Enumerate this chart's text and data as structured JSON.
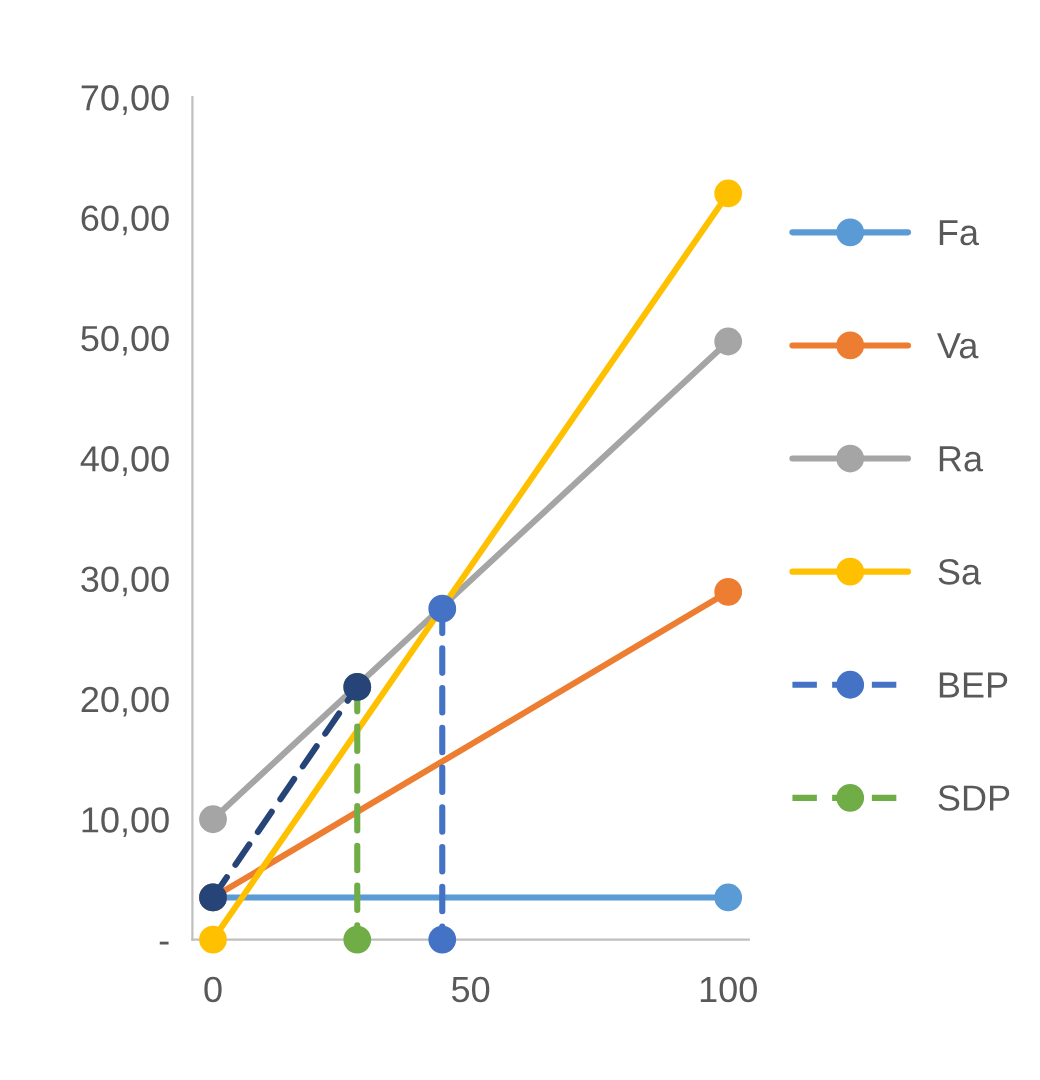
{
  "chart_data": {
    "type": "line",
    "series": [
      {
        "name": "Fa",
        "color": "#5b9bd5",
        "x": [
          0,
          100
        ],
        "values": [
          3.5,
          3.5
        ]
      },
      {
        "name": "Va",
        "color": "#ed7d31",
        "x": [
          0,
          100
        ],
        "values": [
          3.5,
          28.9
        ]
      },
      {
        "name": "Ra",
        "color": "#a5a5a5",
        "x": [
          0,
          100
        ],
        "values": [
          10,
          49.7
        ]
      },
      {
        "name": "Sa",
        "color": "#ffc000",
        "x": [
          0,
          100
        ],
        "values": [
          0,
          62
        ]
      },
      {
        "name": "BEP",
        "color": "#4472c4",
        "x": [
          44.5,
          44.5
        ],
        "values": [
          27.5,
          0
        ],
        "line_style": "dashed"
      },
      {
        "name": "SDP",
        "color": "#70ad47",
        "x": [
          28,
          28
        ],
        "values": [
          21,
          0
        ],
        "line_style": "dashed"
      },
      {
        "color": "#264478",
        "x": [
          0,
          28
        ],
        "values": [
          3.5,
          21
        ],
        "line_style": "dashed"
      }
    ],
    "xlim": [
      -4,
      104
    ],
    "xticks": [
      0,
      50,
      100
    ],
    "ylim": [
      0,
      70
    ],
    "yticks": [
      {
        "value": 0,
        "label": "-"
      },
      {
        "value": 10,
        "label": "10,00"
      },
      {
        "value": 20,
        "label": "20,00"
      },
      {
        "value": 30,
        "label": "30,00"
      },
      {
        "value": 40,
        "label": "40,00"
      },
      {
        "value": 50,
        "label": "50,00"
      },
      {
        "value": 60,
        "label": "60,00"
      },
      {
        "value": 70,
        "label": "70,00"
      }
    ],
    "marker": "circle",
    "line_style": "solid",
    "grid": false,
    "legend": "right"
  }
}
